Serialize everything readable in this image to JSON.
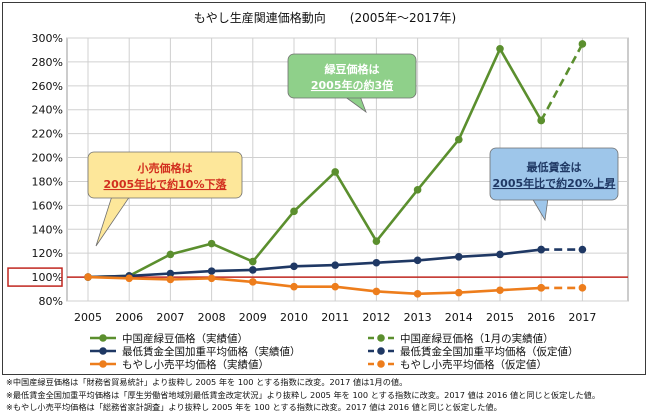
{
  "chart_data": {
    "type": "line",
    "title": "もやし生産関連価格動向　　(2005年～2017年)",
    "xlabel": "",
    "ylabel": "",
    "categories": [
      "2005",
      "2006",
      "2007",
      "2008",
      "2009",
      "2010",
      "2011",
      "2012",
      "2013",
      "2014",
      "2015",
      "2016",
      "2017"
    ],
    "ylim": [
      80,
      300
    ],
    "y_ticks": [
      "80%",
      "100%",
      "120%",
      "140%",
      "160%",
      "180%",
      "200%",
      "220%",
      "240%",
      "260%",
      "280%",
      "300%"
    ],
    "grid": true,
    "reference_line": 100,
    "series": [
      {
        "name": "中国産緑豆価格（実績値）",
        "color": "#5b8f2e",
        "dash": false,
        "values": [
          100,
          101,
          119,
          128,
          113,
          155,
          188,
          130,
          173,
          215,
          291,
          231,
          null
        ]
      },
      {
        "name": "中国産緑豆価格（1月の実績値）",
        "color": "#5b8f2e",
        "dash": true,
        "values": [
          null,
          null,
          null,
          null,
          null,
          null,
          null,
          null,
          null,
          null,
          null,
          231,
          295
        ]
      },
      {
        "name": "最低賃金全国加重平均価格（実績値）",
        "color": "#1f3864",
        "dash": false,
        "values": [
          100,
          101,
          103,
          105,
          106,
          109,
          110,
          112,
          114,
          117,
          119,
          123,
          null
        ]
      },
      {
        "name": "最低賃金全国加重平均価格（仮定値）",
        "color": "#1f3864",
        "dash": true,
        "values": [
          null,
          null,
          null,
          null,
          null,
          null,
          null,
          null,
          null,
          null,
          null,
          123,
          123
        ]
      },
      {
        "name": "もやし小売平均価格（実績値）",
        "color": "#ed7d1c",
        "dash": false,
        "values": [
          100,
          99,
          98,
          99,
          96,
          92,
          92,
          88,
          86,
          87,
          89,
          91,
          null
        ]
      },
      {
        "name": "もやし小売平均価格（仮定値）",
        "color": "#ed7d1c",
        "dash": true,
        "values": [
          null,
          null,
          null,
          null,
          null,
          null,
          null,
          null,
          null,
          null,
          null,
          91,
          91
        ]
      }
    ],
    "legend_position": "bottom",
    "annotations": [
      {
        "id": "green",
        "lines": [
          "緑豆価格は",
          "2005年の約3倍"
        ],
        "fill": "#8fd08a",
        "text_color": "#ffffff"
      },
      {
        "id": "orange",
        "lines": [
          "小売価格は",
          "2005年比で約10%下落"
        ],
        "fill": "#fde79a",
        "text_color": "#d22f1f"
      },
      {
        "id": "blue",
        "lines": [
          "最低賃金は",
          "2005年比で約20%上昇"
        ],
        "fill": "#9ec6ea",
        "text_color": "#1f3864"
      }
    ]
  },
  "notes": [
    "※中国産緑豆価格は「財務省貿易統計」より抜粋し 2005 年を 100 とする指数に改変。2017 値は1月の値。",
    "※最低賃金全国加重平均価格は「厚生労働省地域別最低賃金改定状況」より抜粋し 2005 年を 100 とする指数に改変。2017 値は 2016 値と同じと仮定した値。",
    "※もやし小売平均価格は「総務省家計調査」より抜粋し 2005 年を 100 とする指数に改変。2017 値は 2016 値と同じと仮定した値。"
  ]
}
